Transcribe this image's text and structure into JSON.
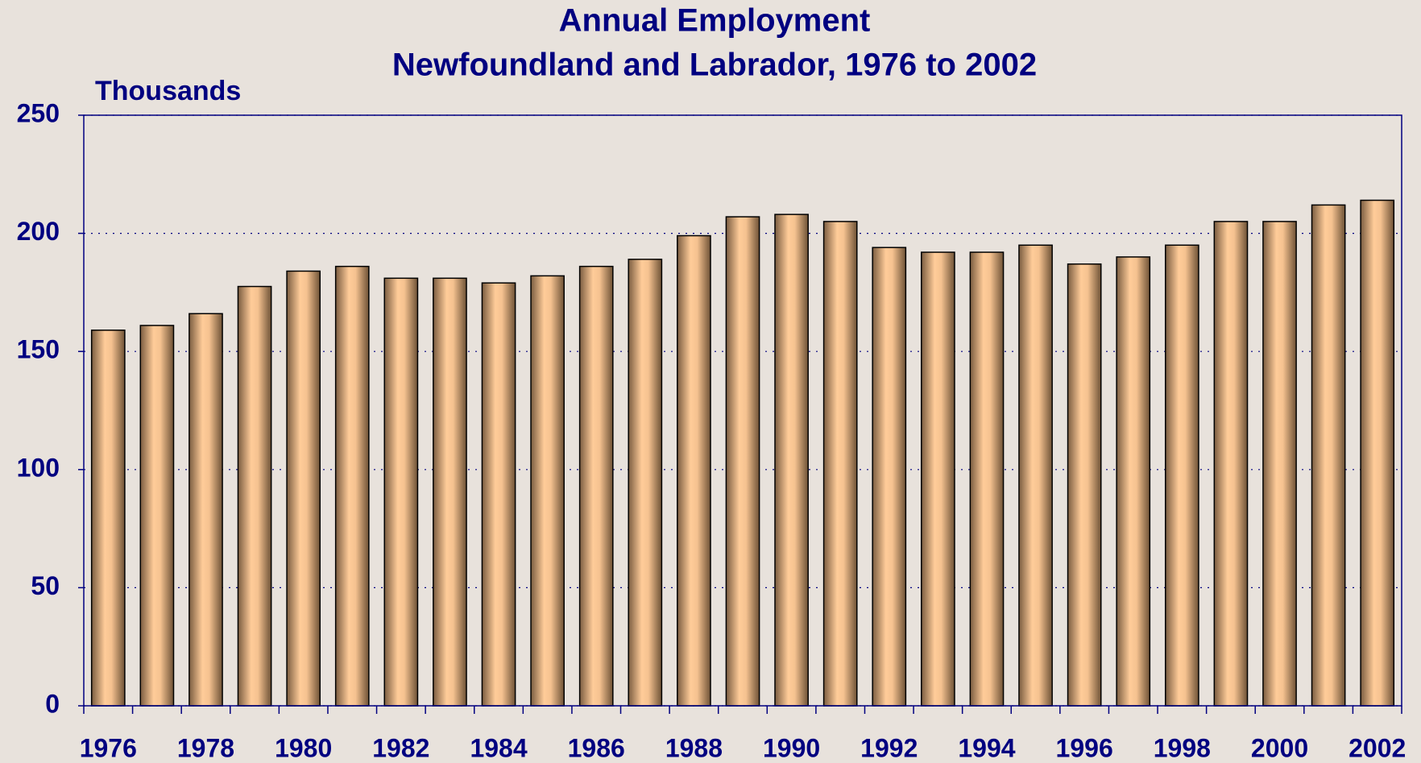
{
  "chart_data": {
    "type": "bar",
    "title": "Annual Employment",
    "subtitle": "Newfoundland and Labrador, 1976 to 2002",
    "y_label": "Thousands",
    "categories": [
      "1976",
      null,
      "1978",
      null,
      "1980",
      null,
      "1982",
      null,
      "1984",
      null,
      "1986",
      null,
      "1988",
      null,
      "1990",
      null,
      "1992",
      null,
      "1994",
      null,
      "1996",
      null,
      "1998",
      null,
      "2000",
      null,
      "2002"
    ],
    "values": [
      159,
      161,
      166,
      177.5,
      184,
      186,
      181,
      181,
      179,
      182,
      186,
      189,
      199,
      207,
      208,
      205,
      194,
      192,
      192,
      195,
      187,
      190,
      195,
      205,
      205,
      212,
      214
    ],
    "color": "#ffcc99",
    "ylim": [
      0,
      250
    ],
    "yticks": [
      0,
      50,
      100,
      150,
      200,
      250
    ],
    "grid": true
  }
}
